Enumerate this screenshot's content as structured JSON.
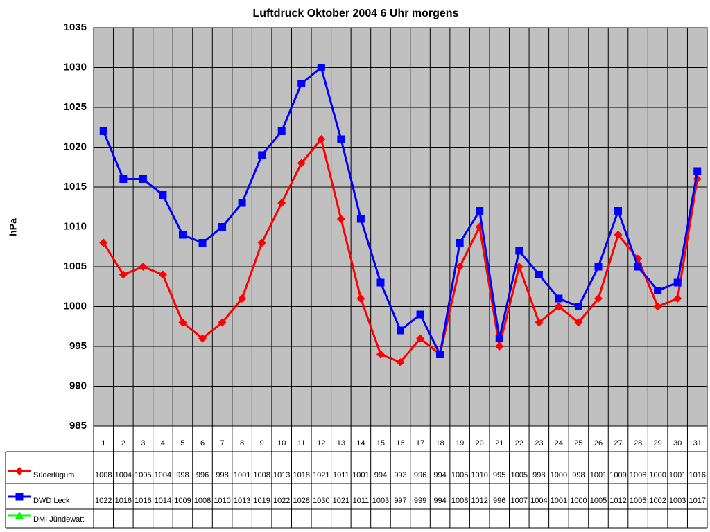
{
  "chart_data": {
    "type": "line",
    "title": "Luftdruck Oktober 2004 6 Uhr morgens",
    "y_label": "hPa",
    "categories": [
      "1",
      "2",
      "3",
      "4",
      "5",
      "6",
      "7",
      "8",
      "9",
      "10",
      "11",
      "12",
      "13",
      "14",
      "15",
      "16",
      "17",
      "18",
      "19",
      "20",
      "21",
      "22",
      "23",
      "24",
      "25",
      "26",
      "27",
      "28",
      "29",
      "30",
      "31"
    ],
    "series": [
      {
        "name": "Süderlügum",
        "color": "#ff0000",
        "marker": "diamond",
        "values": [
          1008,
          1004,
          1005,
          1004,
          998,
          996,
          998,
          1001,
          1008,
          1013,
          1018,
          1021,
          1011,
          1001,
          994,
          993,
          996,
          994,
          1005,
          1010,
          995,
          1005,
          998,
          1000,
          998,
          1001,
          1009,
          1006,
          1000,
          1001,
          1016
        ]
      },
      {
        "name": "DWD Leck",
        "color": "#0000ff",
        "marker": "square",
        "values": [
          1022,
          1016,
          1016,
          1014,
          1009,
          1008,
          1010,
          1013,
          1019,
          1022,
          1028,
          1030,
          1021,
          1011,
          1003,
          997,
          999,
          994,
          1008,
          1012,
          996,
          1007,
          1004,
          1001,
          1000,
          1005,
          1012,
          1005,
          1002,
          1003,
          1017
        ]
      },
      {
        "name": "DMI Jündewatt",
        "color": "#00ff00",
        "marker": "triangle",
        "values": [
          null,
          null,
          null,
          null,
          null,
          null,
          null,
          null,
          null,
          null,
          null,
          null,
          null,
          null,
          null,
          null,
          null,
          null,
          null,
          null,
          null,
          null,
          null,
          null,
          null,
          null,
          null,
          null,
          null,
          null,
          null
        ]
      }
    ],
    "ylim": [
      985,
      1035
    ],
    "yticks": [
      985,
      990,
      995,
      1000,
      1005,
      1010,
      1015,
      1020,
      1025,
      1030,
      1035
    ],
    "grid": true,
    "data_table": true
  }
}
